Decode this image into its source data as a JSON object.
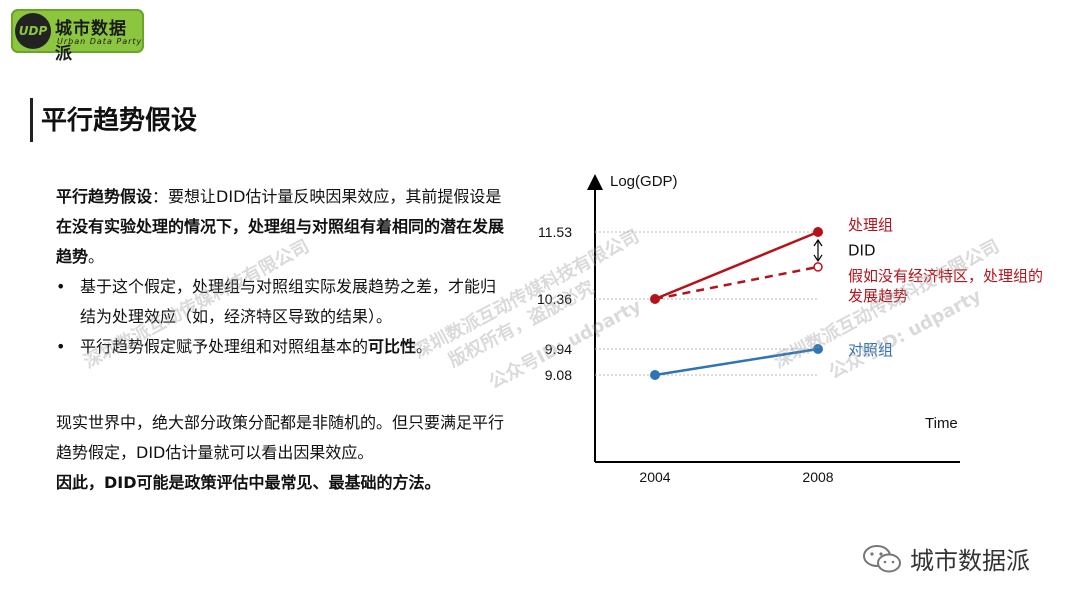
{
  "logo": {
    "mark": "UDP",
    "name": "城市数据派",
    "sub": "Urban Data Party"
  },
  "title": "平行趋势假设",
  "intro": {
    "label": "平行趋势假设",
    "colon": "：",
    "text1": "要想让DID估计量反映因果效应，其前提假设是",
    "bold1": "在没有实验处理的情况下，处理组与对照组有着相同的潜在发展趋势",
    "end": "。"
  },
  "bullets": [
    {
      "dot": "•",
      "text": "基于这个假定，处理组与对照组实际发展趋势之差，才能归结为处理效应（如，经济特区导致的结果）。"
    },
    {
      "dot": "•",
      "text": "平行趋势假定赋予处理组和对照组基本的",
      "bold": "可比性",
      "end": "。"
    }
  ],
  "para2": {
    "text": "现实世界中，绝大部分政策分配都是非随机的。但只要满足平行趋势假定，DID估计量就可以看出因果效应。",
    "bold": "因此，DID可能是政策评估中最常见、最基础的方法。"
  },
  "chart_data": {
    "type": "line",
    "ylabel": "Log(GDP)",
    "xlabel": "Time",
    "x": [
      "2004",
      "2008"
    ],
    "y_ticks": [
      "11.53",
      "10.36",
      "9.94",
      "9.08"
    ],
    "series": [
      {
        "name": "处理组",
        "values": [
          10.36,
          11.53
        ],
        "color": "#b5121b",
        "style": "solid"
      },
      {
        "name": "假如没有经济特区，处理组的发展趋势",
        "values": [
          10.36,
          10.92
        ],
        "color": "#b5121b",
        "style": "dashed"
      },
      {
        "name": "对照组",
        "values": [
          9.08,
          9.94
        ],
        "color": "#2e75b6",
        "style": "solid"
      }
    ],
    "annotation": "DID"
  },
  "watermarks": [
    "深圳数派互动传媒科技有限公司",
    "版权所有，盗版必究",
    "公众号ID: udparty"
  ],
  "footer": {
    "brand": "城市数据派"
  },
  "colors": {
    "accent": "#8cc63f",
    "treat": "#b5121b",
    "control": "#2e75b6"
  }
}
